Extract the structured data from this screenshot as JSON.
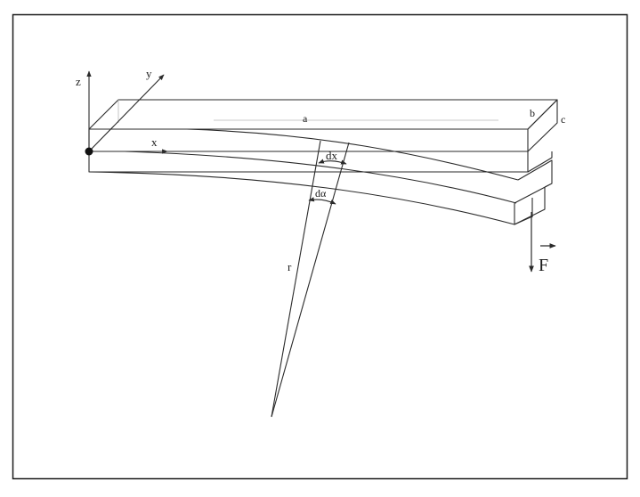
{
  "figure": {
    "colors": {
      "line": "#2a2a2a",
      "frame": "#1a1a1a",
      "background": "#ffffff",
      "faint": "#b8b8b8"
    },
    "axes": {
      "z": "z",
      "y": "y",
      "x": "x"
    },
    "dimensions": {
      "length": "a",
      "width": "b",
      "thickness": "c"
    },
    "element": {
      "length": "dx",
      "angle": "dα"
    },
    "radius": "r",
    "force": "F"
  }
}
